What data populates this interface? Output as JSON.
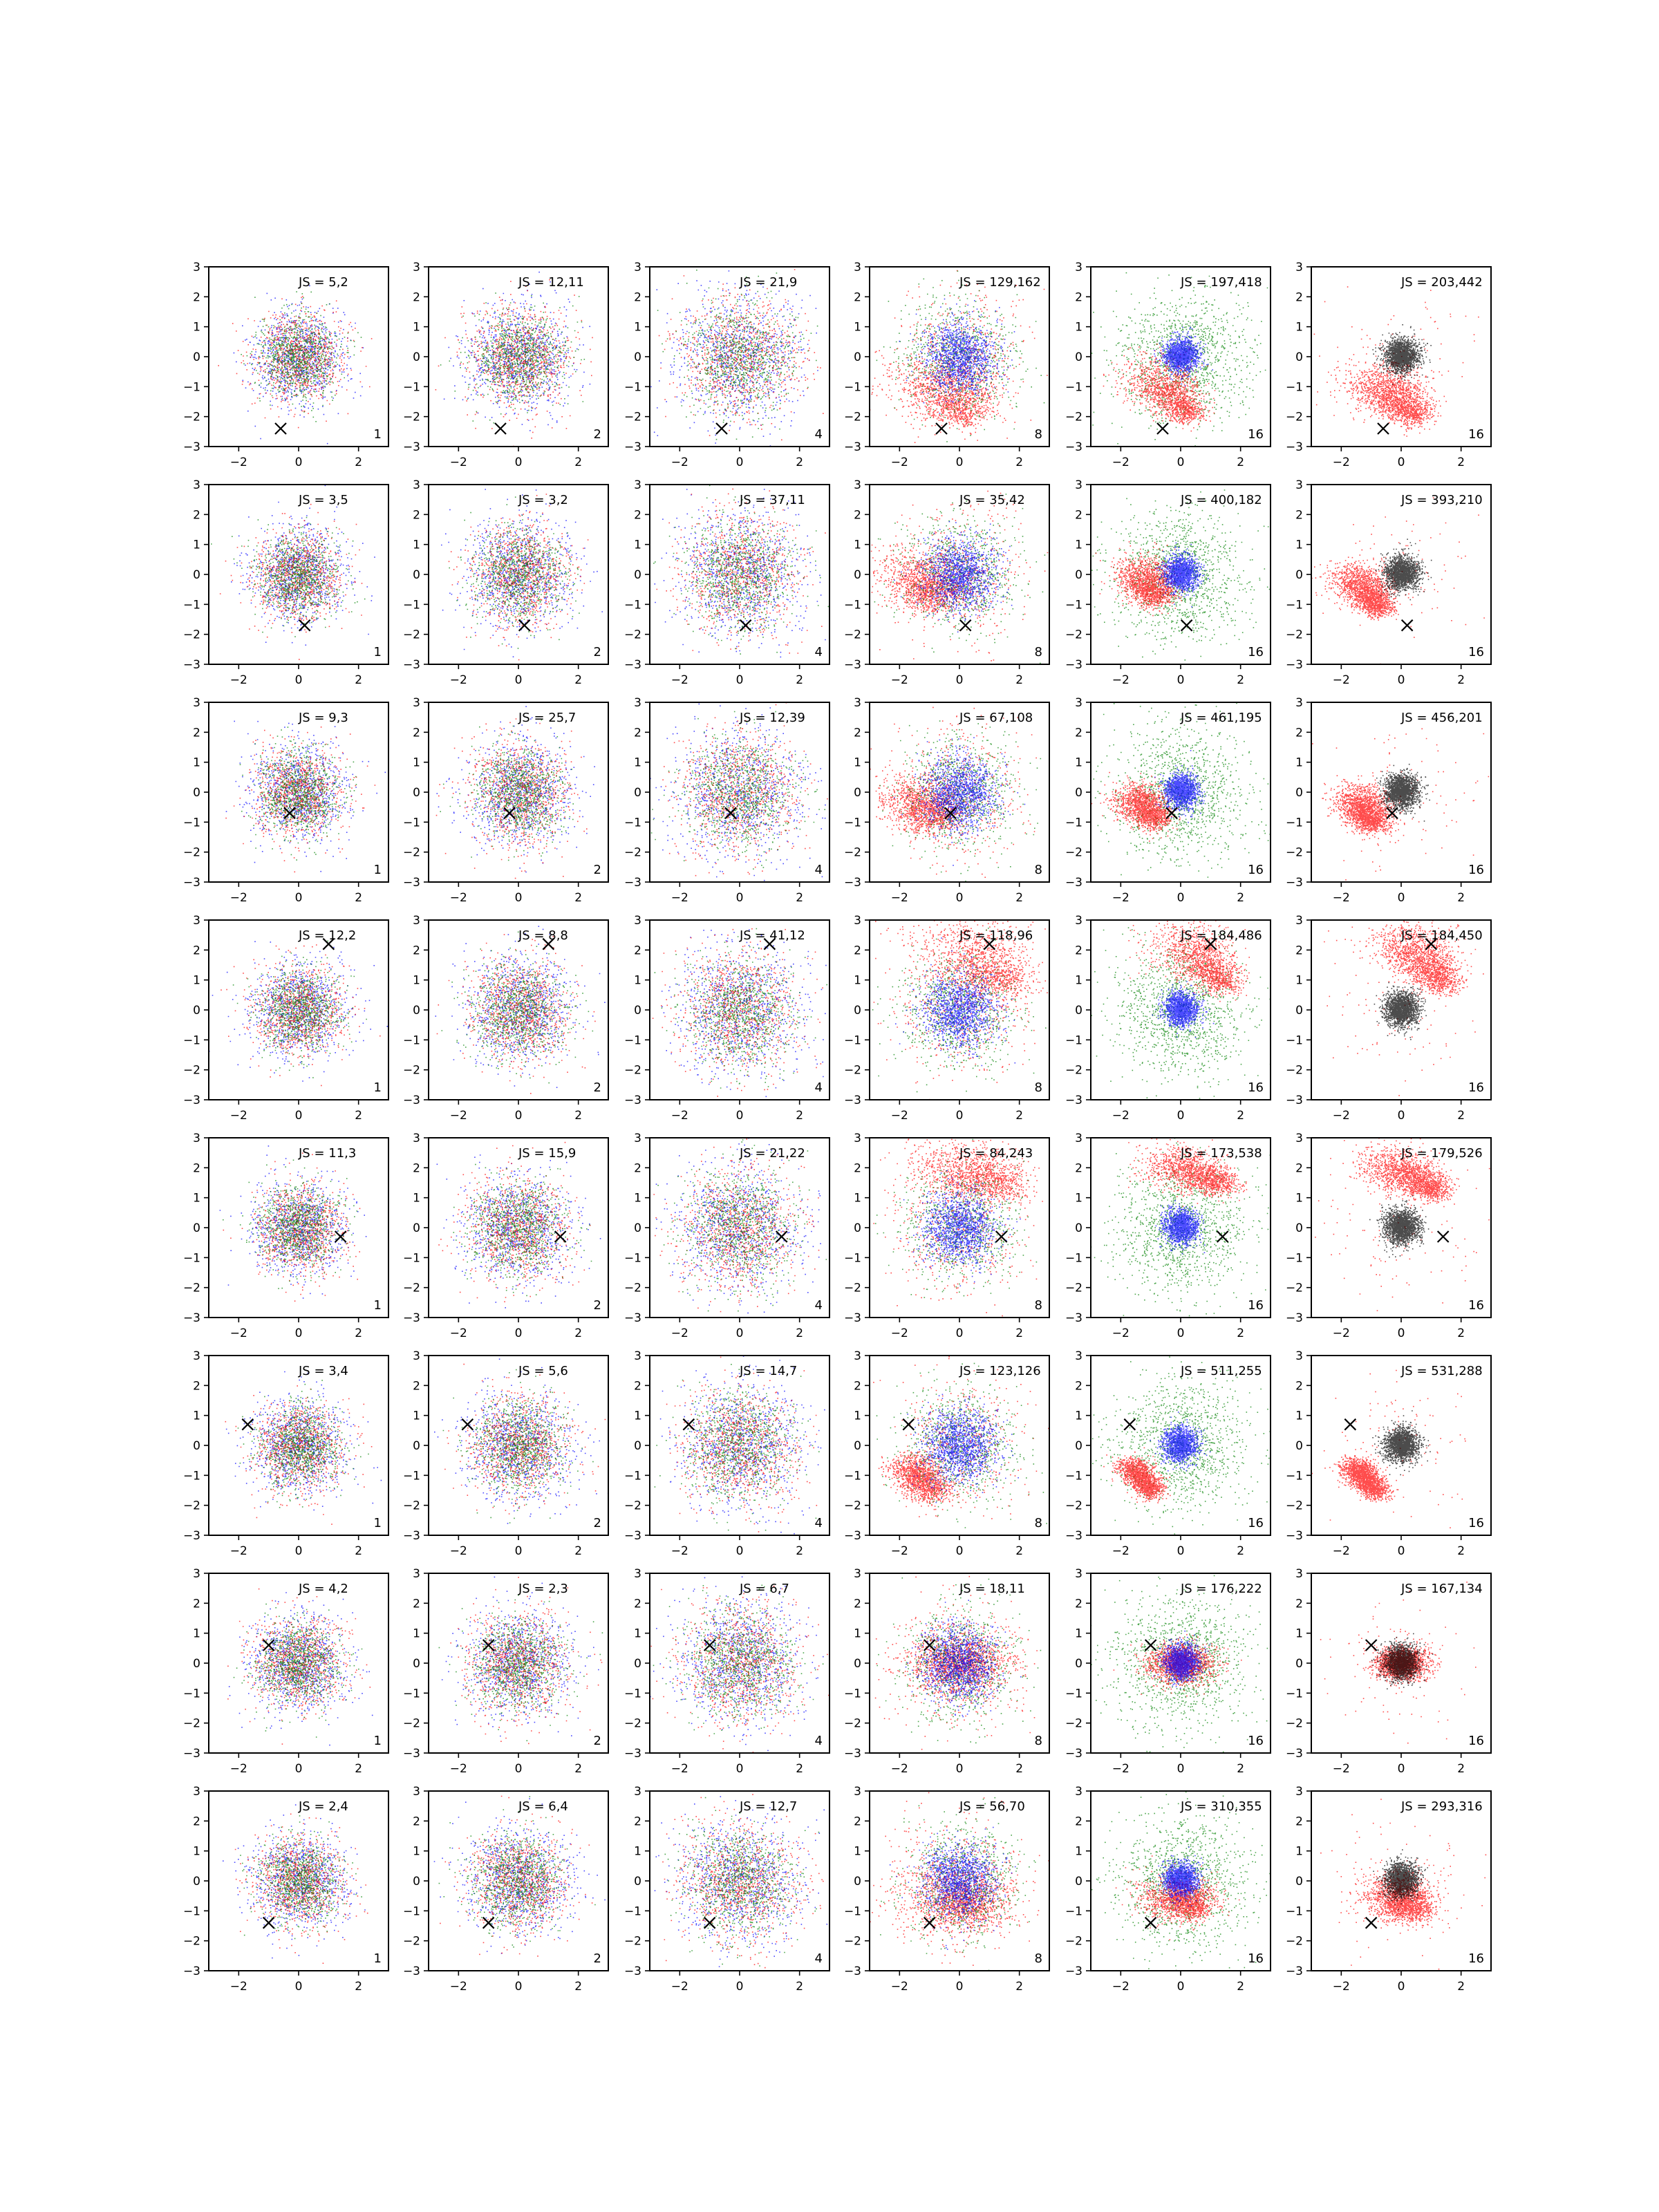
{
  "chart_data": {
    "type": "scatter",
    "grid": false,
    "xlim": [
      -3,
      3
    ],
    "ylim": [
      -3,
      3
    ],
    "x_ticks": [
      -2,
      0,
      2
    ],
    "y_ticks": [
      -3,
      -2,
      -1,
      0,
      1,
      2,
      3
    ],
    "colors": {
      "red": "#ff0000",
      "green": "#008000",
      "blue": "#0000ff",
      "black": "#000000",
      "marker": "#000000"
    },
    "columns": [
      1,
      2,
      4,
      8,
      16,
      16
    ],
    "rows": [
      {
        "marker": [
          -0.6,
          -2.4
        ],
        "js": [
          "JS = 5,2",
          "JS = 12,11",
          "JS = 21,9",
          "JS = 129,162",
          "JS = 197,418",
          "JS = 203,442"
        ],
        "red_shape": [
          [
            -1.0,
            -0.5,
            1.2
          ],
          [
            0.3,
            -2.0,
            0.4
          ]
        ],
        "red_shape_k": [
          [
            -0.9,
            -0.7,
            1.2
          ],
          [
            0.5,
            -2.0,
            0.5
          ]
        ]
      },
      {
        "marker": [
          0.2,
          -1.7
        ],
        "js": [
          "JS = 3,5",
          "JS = 3,2",
          "JS = 37,11",
          "JS = 35,42",
          "JS = 400,182",
          "JS = 393,210"
        ],
        "red_shape": [
          [
            -1.4,
            0.2,
            1.0
          ],
          [
            -0.8,
            -0.8,
            0.5
          ]
        ],
        "red_shape_k": [
          [
            -1.6,
            0.0,
            0.9
          ],
          [
            -0.7,
            -1.2,
            0.4
          ]
        ]
      },
      {
        "marker": [
          -0.3,
          -0.7
        ],
        "js": [
          "JS = 9,3",
          "JS = 25,7",
          "JS = 12,39",
          "JS = 67,108",
          "JS = 461,195",
          "JS = 456,201"
        ],
        "red_shape": [
          [
            -1.6,
            0.0,
            0.8
          ],
          [
            -0.8,
            -1.0,
            0.5
          ]
        ],
        "red_shape_k": [
          [
            -1.5,
            -0.1,
            0.8
          ],
          [
            -0.9,
            -1.1,
            0.5
          ]
        ]
      },
      {
        "marker": [
          1.0,
          2.2
        ],
        "js": [
          "JS = 12,2",
          "JS = 8,8",
          "JS = 41,12",
          "JS = 118,96",
          "JS = 184,486",
          "JS = 184,450"
        ],
        "red_shape": [
          [
            0.0,
            2.4,
            1.3
          ],
          [
            1.5,
            0.8,
            0.5
          ]
        ],
        "red_shape_k": [
          [
            0.0,
            2.4,
            1.2
          ],
          [
            1.5,
            0.8,
            0.5
          ]
        ]
      },
      {
        "marker": [
          1.4,
          -0.3
        ],
        "js": [
          "JS = 11,3",
          "JS = 15,9",
          "JS = 21,22",
          "JS = 84,243",
          "JS = 173,538",
          "JS = 179,526"
        ],
        "red_shape": [
          [
            -0.5,
            2.2,
            1.1
          ],
          [
            1.5,
            1.4,
            0.5
          ]
        ],
        "red_shape_k": [
          [
            -0.5,
            2.2,
            1.1
          ],
          [
            1.2,
            1.2,
            0.5
          ]
        ]
      },
      {
        "marker": [
          -1.7,
          0.7
        ],
        "js": [
          "JS = 3,4",
          "JS = 5,6",
          "JS = 14,7",
          "JS = 123,126",
          "JS = 511,255",
          "JS = 531,288"
        ],
        "red_shape": [
          [
            -1.7,
            -0.6,
            0.5
          ],
          [
            -0.9,
            -1.6,
            0.4
          ]
        ],
        "red_shape_k": [
          [
            -1.6,
            -0.6,
            0.5
          ],
          [
            -0.8,
            -1.6,
            0.4
          ]
        ]
      },
      {
        "marker": [
          -1.0,
          0.6
        ],
        "js": [
          "JS = 4,2",
          "JS = 2,3",
          "JS = 6,7",
          "JS = 18,11",
          "JS = 176,222",
          "JS = 167,134"
        ],
        "red_shape": [
          [
            0.0,
            0.0,
            0.9
          ],
          [
            0.0,
            0.0,
            0.9
          ]
        ],
        "red_shape_k": [
          [
            0.0,
            0.0,
            0.7
          ],
          [
            0.0,
            0.0,
            0.7
          ]
        ]
      },
      {
        "marker": [
          -1.0,
          -1.4
        ],
        "js": [
          "JS = 2,4",
          "JS = 6,4",
          "JS = 12,7",
          "JS = 56,70",
          "JS = 310,355",
          "JS = 293,316"
        ],
        "red_shape": [
          [
            -0.4,
            -0.4,
            1.2
          ],
          [
            0.4,
            -0.9,
            0.6
          ]
        ],
        "red_shape_k": [
          [
            -0.3,
            -0.3,
            1.1
          ],
          [
            0.4,
            -1.0,
            0.6
          ]
        ]
      }
    ]
  }
}
